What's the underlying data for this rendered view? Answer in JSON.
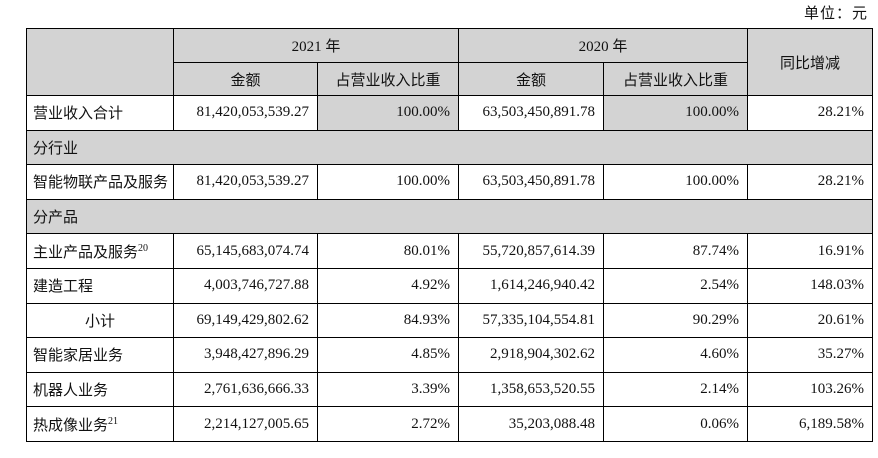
{
  "unit_label": "单位：元",
  "colors": {
    "header_bg": "#d3d3d3",
    "section_bg": "#d3d3d3",
    "shaded_cell_bg": "#d3d3d3",
    "border": "#000000",
    "text": "#111111",
    "page_bg": "#ffffff"
  },
  "table": {
    "columns": {
      "group_2021": "2021 年",
      "group_2020": "2020 年",
      "yoy": "同比增减",
      "amount": "金额",
      "ratio": "占营业收入比重"
    },
    "rows": [
      {
        "type": "data",
        "label": "营业收入合计",
        "sup": "",
        "amount_2021": "81,420,053,539.27",
        "ratio_2021": "100.00%",
        "amount_2020": "63,503,450,891.78",
        "ratio_2020": "100.00%",
        "yoy": "28.21%",
        "ratio_shaded": true,
        "label_align": "left"
      },
      {
        "type": "section",
        "label": "分行业"
      },
      {
        "type": "data",
        "label": "智能物联产品及服务",
        "sup": "",
        "amount_2021": "81,420,053,539.27",
        "ratio_2021": "100.00%",
        "amount_2020": "63,503,450,891.78",
        "ratio_2020": "100.00%",
        "yoy": "28.21%",
        "ratio_shaded": false,
        "label_align": "left"
      },
      {
        "type": "section",
        "label": "分产品"
      },
      {
        "type": "data",
        "label": "主业产品及服务",
        "sup": "20",
        "amount_2021": "65,145,683,074.74",
        "ratio_2021": "80.01%",
        "amount_2020": "55,720,857,614.39",
        "ratio_2020": "87.74%",
        "yoy": "16.91%",
        "ratio_shaded": false,
        "label_align": "left"
      },
      {
        "type": "data",
        "label": "建造工程",
        "sup": "",
        "amount_2021": "4,003,746,727.88",
        "ratio_2021": "4.92%",
        "amount_2020": "1,614,246,940.42",
        "ratio_2020": "2.54%",
        "yoy": "148.03%",
        "ratio_shaded": false,
        "label_align": "left"
      },
      {
        "type": "data",
        "label": "小计",
        "sup": "",
        "amount_2021": "69,149,429,802.62",
        "ratio_2021": "84.93%",
        "amount_2020": "57,335,104,554.81",
        "ratio_2020": "90.29%",
        "yoy": "20.61%",
        "ratio_shaded": false,
        "label_align": "center"
      },
      {
        "type": "data",
        "label": "智能家居业务",
        "sup": "",
        "amount_2021": "3,948,427,896.29",
        "ratio_2021": "4.85%",
        "amount_2020": "2,918,904,302.62",
        "ratio_2020": "4.60%",
        "yoy": "35.27%",
        "ratio_shaded": false,
        "label_align": "left"
      },
      {
        "type": "data",
        "label": "机器人业务",
        "sup": "",
        "amount_2021": "2,761,636,666.33",
        "ratio_2021": "3.39%",
        "amount_2020": "1,358,653,520.55",
        "ratio_2020": "2.14%",
        "yoy": "103.26%",
        "ratio_shaded": false,
        "label_align": "left"
      },
      {
        "type": "data",
        "label": "热成像业务",
        "sup": "21",
        "amount_2021": "2,214,127,005.65",
        "ratio_2021": "2.72%",
        "amount_2020": "35,203,088.48",
        "ratio_2020": "0.06%",
        "yoy": "6,189.58%",
        "ratio_shaded": false,
        "label_align": "left"
      }
    ]
  }
}
